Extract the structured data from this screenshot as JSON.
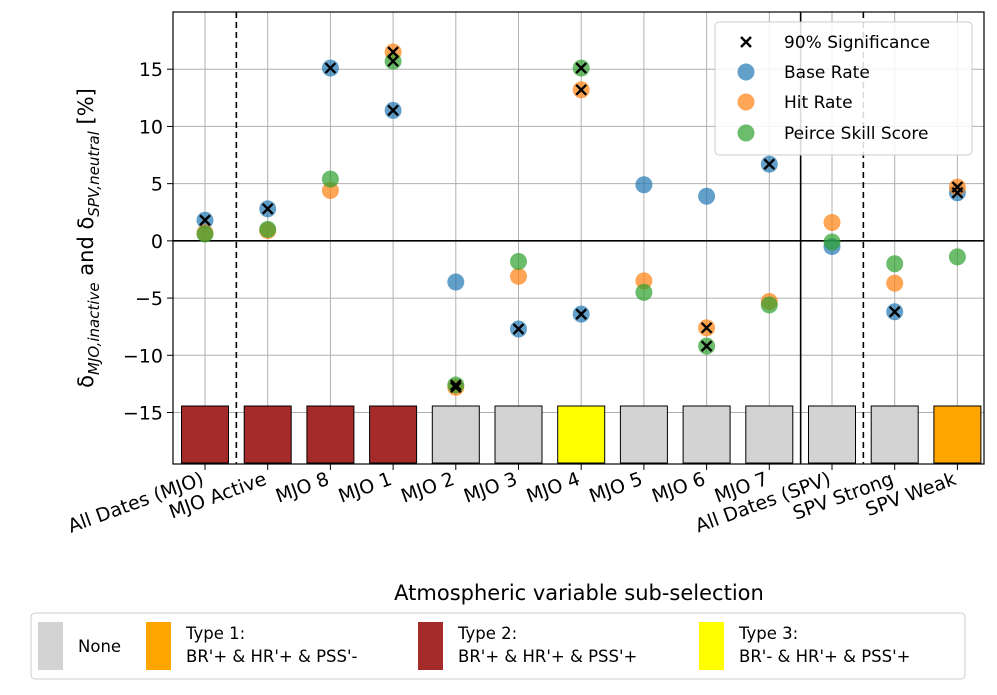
{
  "chart_data": {
    "type": "scatter",
    "xlabel": "Atmospheric variable sub-selection",
    "ylabel": {
      "prefix": "δ",
      "sub1": "MJO,inactive",
      "middle": " and δ",
      "sub2": "SPV,neutral",
      "suffix": " [%]"
    },
    "ylim": [
      -19.5,
      20
    ],
    "yticks": [
      {
        "value": 15,
        "label": "15"
      },
      {
        "value": 10,
        "label": "10"
      },
      {
        "value": 5,
        "label": "5"
      },
      {
        "value": 0,
        "label": "0"
      },
      {
        "value": -5,
        "label": "−5"
      },
      {
        "value": -10,
        "label": "−10"
      },
      {
        "value": -15,
        "label": "−15"
      }
    ],
    "categories": [
      "All Dates (MJO)",
      "MJO Active",
      "MJO 8",
      "MJO 1",
      "MJO 2",
      "MJO 3",
      "MJO 4",
      "MJO 5",
      "MJO 6",
      "MJO 7",
      "All Dates (SPV)",
      "SPV Strong",
      "SPV Weak"
    ],
    "category_type": [
      "Type 2",
      "Type 2",
      "Type 2",
      "Type 2",
      "None",
      "None",
      "Type 3",
      "None",
      "None",
      "None",
      "None",
      "None",
      "Type 1"
    ],
    "series": [
      {
        "name": "Base Rate",
        "color": "#1f77b4",
        "values": [
          1.8,
          2.8,
          15.1,
          11.4,
          -3.6,
          -7.7,
          -6.4,
          4.9,
          3.9,
          6.7,
          -0.5,
          -6.2,
          4.2
        ],
        "significant": [
          true,
          true,
          true,
          true,
          false,
          true,
          true,
          false,
          false,
          true,
          false,
          true,
          true
        ]
      },
      {
        "name": "Hit Rate",
        "color": "#ff7f0e",
        "values": [
          0.7,
          0.9,
          4.4,
          16.5,
          -12.8,
          -3.1,
          13.2,
          -3.5,
          -7.6,
          -5.3,
          1.6,
          -3.7,
          4.7
        ],
        "significant": [
          false,
          false,
          false,
          true,
          true,
          false,
          true,
          false,
          true,
          false,
          false,
          false,
          true
        ]
      },
      {
        "name": "Peirce Skill Score",
        "color": "#2ca02c",
        "values": [
          0.6,
          1.0,
          5.4,
          15.7,
          -12.6,
          -1.8,
          15.1,
          -4.5,
          -9.2,
          -5.6,
          -0.1,
          -2.0,
          -1.4
        ],
        "significant": [
          false,
          false,
          false,
          true,
          true,
          false,
          true,
          false,
          true,
          false,
          false,
          false,
          false
        ]
      }
    ],
    "significance_marker": {
      "label": "90% Significance",
      "symbol": "×",
      "color": "#000000"
    },
    "legend": {
      "placement": "top-right",
      "entries": [
        "90% Significance",
        "Base Rate",
        "Hit Rate",
        "Peirce Skill Score"
      ]
    },
    "reference_lines": {
      "horizontal_solid": 0,
      "vertical_dashed_after": [
        "All Dates (MJO)",
        "All Dates (SPV)"
      ],
      "vertical_solid_after": [
        "MJO 7"
      ]
    },
    "grid": true,
    "type_legend": [
      {
        "key": "None",
        "color": "#d3d3d3",
        "line1": "None",
        "line2": ""
      },
      {
        "key": "Type 1",
        "color": "#ffa500",
        "line1": "Type 1:",
        "line2": "BR'+ & HR'+ & PSS'-"
      },
      {
        "key": "Type 2",
        "color": "#a52a2a",
        "line1": "Type 2:",
        "line2": "BR'+ & HR'+ & PSS'+"
      },
      {
        "key": "Type 3",
        "color": "#ffff00",
        "line1": "Type 3:",
        "line2": "BR'- & HR'+ & PSS'+"
      }
    ]
  }
}
